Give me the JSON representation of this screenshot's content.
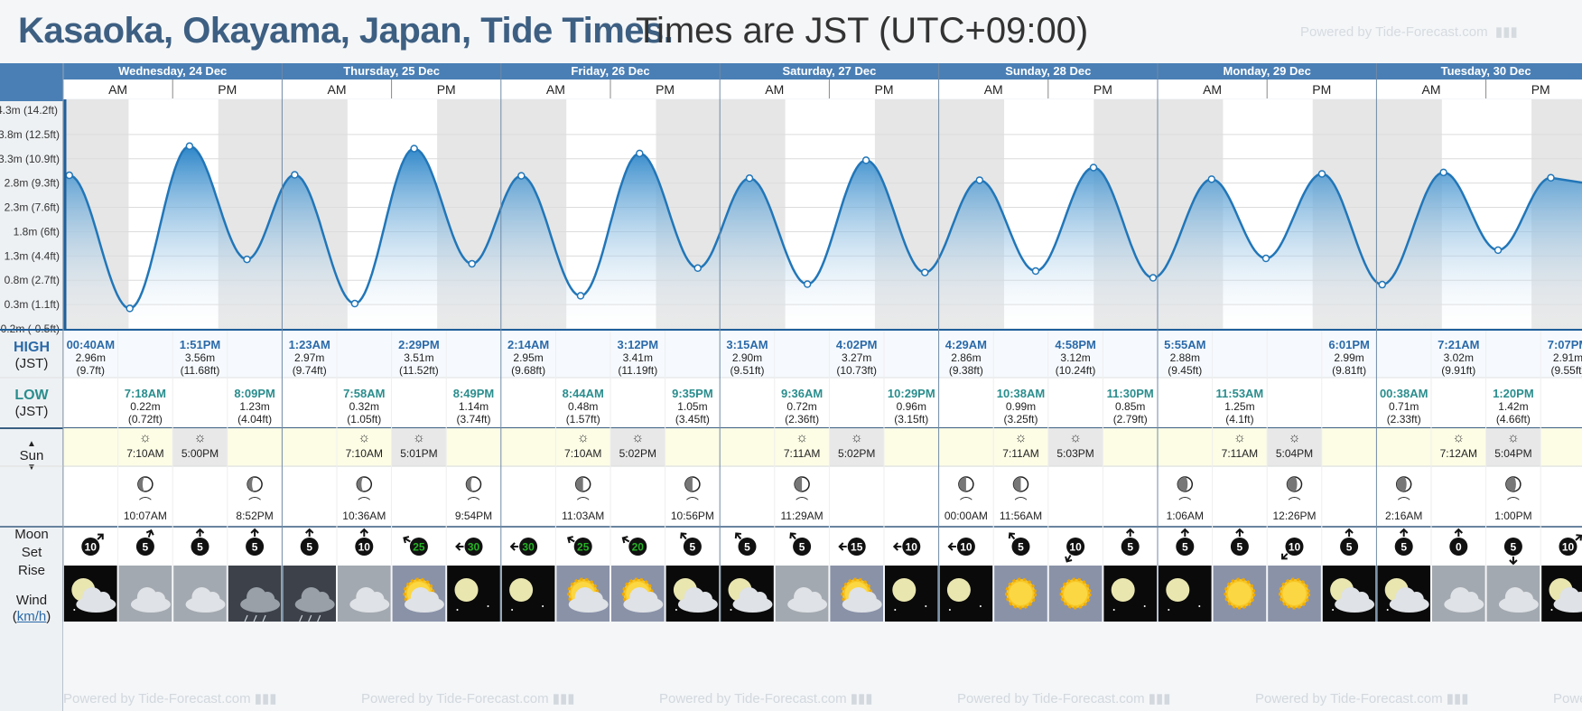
{
  "header": {
    "title": "Kasaoka, Okayama, Japan, Tide Times.",
    "subtitle": "Times are JST (UTC+09:00)",
    "powered_by": "Powered by Tide-Forecast.com"
  },
  "days": [
    {
      "label": "Wednesday, 24 Dec",
      "am": "AM",
      "pm": "PM"
    },
    {
      "label": "Thursday, 25 Dec",
      "am": "AM",
      "pm": "PM"
    },
    {
      "label": "Friday, 26 Dec",
      "am": "AM",
      "pm": "PM"
    },
    {
      "label": "Saturday, 27 Dec",
      "am": "AM",
      "pm": "PM"
    },
    {
      "label": "Sunday, 28 Dec",
      "am": "AM",
      "pm": "PM"
    },
    {
      "label": "Monday, 29 Dec",
      "am": "AM",
      "pm": "PM"
    },
    {
      "label": "Tuesday, 30 Dec",
      "am": "AM",
      "pm": "PM"
    }
  ],
  "y_axis": {
    "labels": [
      "3.8m (12.5ft)",
      "3.3m (10.9ft)",
      "2.8m (9.3ft)",
      "2.3m (7.6ft)",
      "1.8m (6ft)",
      "1.3m (4.4ft)",
      "0.8m (2.7ft)",
      "0.3m (1.1ft)",
      "-0.2m (-0.5ft)"
    ],
    "top_partial": "4.3m (14.2ft)"
  },
  "row_labels": {
    "high": "HIGH",
    "high_tz": "(JST)",
    "low": "LOW",
    "low_tz": "(JST)",
    "sun": "Sun",
    "moon": "Moon",
    "moon_set": "Set",
    "moon_rise": "Rise",
    "wind": "Wind",
    "wind_unit": "km/h"
  },
  "chart_data": {
    "type": "area",
    "title": "",
    "ylabel": "",
    "ylim": [
      -0.2,
      4.3
    ],
    "x_unit": "hours from Wed 24 Dec 00:00 JST",
    "series": [
      {
        "points": [
          {
            "t": "00:40AM",
            "h": 2.96,
            "type": "high",
            "x": 0.67
          },
          {
            "t": "7:18AM",
            "h": 0.22,
            "type": "low",
            "x": 7.3
          },
          {
            "t": "1:51PM",
            "h": 3.56,
            "type": "high",
            "x": 13.85
          },
          {
            "t": "8:09PM",
            "h": 1.23,
            "type": "low",
            "x": 20.15
          },
          {
            "t": "1:23AM",
            "h": 2.97,
            "type": "high",
            "x": 25.38
          },
          {
            "t": "7:58AM",
            "h": 0.32,
            "type": "low",
            "x": 31.97
          },
          {
            "t": "2:29PM",
            "h": 3.51,
            "type": "high",
            "x": 38.48
          },
          {
            "t": "8:49PM",
            "h": 1.14,
            "type": "low",
            "x": 44.82
          },
          {
            "t": "2:14AM",
            "h": 2.95,
            "type": "high",
            "x": 50.23
          },
          {
            "t": "8:44AM",
            "h": 0.48,
            "type": "low",
            "x": 56.73
          },
          {
            "t": "3:12PM",
            "h": 3.41,
            "type": "high",
            "x": 63.2
          },
          {
            "t": "9:35PM",
            "h": 1.05,
            "type": "low",
            "x": 69.58
          },
          {
            "t": "3:15AM",
            "h": 2.9,
            "type": "high",
            "x": 75.25
          },
          {
            "t": "9:36AM",
            "h": 0.72,
            "type": "low",
            "x": 81.6
          },
          {
            "t": "4:02PM",
            "h": 3.27,
            "type": "high",
            "x": 88.03
          },
          {
            "t": "10:29PM",
            "h": 0.96,
            "type": "low",
            "x": 94.48
          },
          {
            "t": "4:29AM",
            "h": 2.86,
            "type": "high",
            "x": 100.48
          },
          {
            "t": "10:38AM",
            "h": 0.99,
            "type": "low",
            "x": 106.63
          },
          {
            "t": "4:58PM",
            "h": 3.12,
            "type": "high",
            "x": 112.97
          },
          {
            "t": "11:30PM",
            "h": 0.85,
            "type": "low",
            "x": 119.5
          },
          {
            "t": "5:55AM",
            "h": 2.88,
            "type": "high",
            "x": 125.92
          },
          {
            "t": "11:53AM",
            "h": 1.25,
            "type": "low",
            "x": 131.88
          },
          {
            "t": "6:01PM",
            "h": 2.99,
            "type": "high",
            "x": 138.02
          },
          {
            "t": "00:38AM",
            "h": 0.71,
            "type": "low",
            "x": 144.63
          },
          {
            "t": "7:21AM",
            "h": 3.02,
            "type": "high",
            "x": 151.35
          },
          {
            "t": "1:20PM",
            "h": 1.42,
            "type": "low",
            "x": 157.33
          },
          {
            "t": "7:07PM",
            "h": 2.91,
            "type": "high",
            "x": 163.12
          }
        ]
      }
    ],
    "tides": [
      {
        "type": "high",
        "time": "00:40AM",
        "m": "2.96m",
        "ft": "(9.7ft)"
      },
      {
        "type": "low",
        "time": "7:18AM",
        "m": "0.22m",
        "ft": "(0.72ft)"
      },
      {
        "type": "high",
        "time": "1:51PM",
        "m": "3.56m",
        "ft": "(11.68ft)"
      },
      {
        "type": "low",
        "time": "8:09PM",
        "m": "1.23m",
        "ft": "(4.04ft)"
      },
      {
        "type": "high",
        "time": "1:23AM",
        "m": "2.97m",
        "ft": "(9.74ft)"
      },
      {
        "type": "low",
        "time": "7:58AM",
        "m": "0.32m",
        "ft": "(1.05ft)"
      },
      {
        "type": "high",
        "time": "2:29PM",
        "m": "3.51m",
        "ft": "(11.52ft)"
      },
      {
        "type": "low",
        "time": "8:49PM",
        "m": "1.14m",
        "ft": "(3.74ft)"
      },
      {
        "type": "high",
        "time": "2:14AM",
        "m": "2.95m",
        "ft": "(9.68ft)"
      },
      {
        "type": "low",
        "time": "8:44AM",
        "m": "0.48m",
        "ft": "(1.57ft)"
      },
      {
        "type": "high",
        "time": "3:12PM",
        "m": "3.41m",
        "ft": "(11.19ft)"
      },
      {
        "type": "low",
        "time": "9:35PM",
        "m": "1.05m",
        "ft": "(3.45ft)"
      },
      {
        "type": "high",
        "time": "3:15AM",
        "m": "2.90m",
        "ft": "(9.51ft)"
      },
      {
        "type": "low",
        "time": "9:36AM",
        "m": "0.72m",
        "ft": "(2.36ft)"
      },
      {
        "type": "high",
        "time": "4:02PM",
        "m": "3.27m",
        "ft": "(10.73ft)"
      },
      {
        "type": "low",
        "time": "10:29PM",
        "m": "0.96m",
        "ft": "(3.15ft)"
      },
      {
        "type": "high",
        "time": "4:29AM",
        "m": "2.86m",
        "ft": "(9.38ft)"
      },
      {
        "type": "low",
        "time": "10:38AM",
        "m": "0.99m",
        "ft": "(3.25ft)"
      },
      {
        "type": "high",
        "time": "4:58PM",
        "m": "3.12m",
        "ft": "(10.24ft)"
      },
      {
        "type": "low",
        "time": "11:30PM",
        "m": "0.85m",
        "ft": "(2.79ft)"
      },
      {
        "type": "high",
        "time": "5:55AM",
        "m": "2.88m",
        "ft": "(9.45ft)"
      },
      {
        "type": "low",
        "time": "11:53AM",
        "m": "1.25m",
        "ft": "(4.1ft)"
      },
      {
        "type": "high",
        "time": "6:01PM",
        "m": "2.99m",
        "ft": "(9.81ft)"
      },
      {
        "type": "low",
        "time": "00:38AM",
        "m": "0.71m",
        "ft": "(2.33ft)"
      },
      {
        "type": "high",
        "time": "7:21AM",
        "m": "3.02m",
        "ft": "(9.91ft)"
      },
      {
        "type": "low",
        "time": "1:20PM",
        "m": "1.42m",
        "ft": "(4.66ft)"
      },
      {
        "type": "high",
        "time": "7:07PM",
        "m": "2.91m",
        "ft": "(9.55ft)"
      }
    ]
  },
  "sun": [
    {
      "rise": "7:10AM",
      "set": "5:00PM"
    },
    {
      "rise": "7:10AM",
      "set": "5:01PM"
    },
    {
      "rise": "7:10AM",
      "set": "5:02PM"
    },
    {
      "rise": "7:11AM",
      "set": "5:02PM"
    },
    {
      "rise": "7:11AM",
      "set": "5:03PM"
    },
    {
      "rise": "7:11AM",
      "set": "5:04PM"
    },
    {
      "rise": "7:12AM",
      "set": "5:04PM"
    }
  ],
  "moon": [
    {
      "slot": 1,
      "kind": "set",
      "time": "10:07AM",
      "phase": "waxing-crescent"
    },
    {
      "slot": 3,
      "kind": "rise",
      "time": "8:52PM",
      "phase": "waxing-crescent"
    },
    {
      "slot": 5,
      "kind": "set",
      "time": "10:36AM",
      "phase": "waxing-crescent"
    },
    {
      "slot": 7,
      "kind": "rise",
      "time": "9:54PM",
      "phase": "waxing-crescent"
    },
    {
      "slot": 9,
      "kind": "set",
      "time": "11:03AM",
      "phase": "first-quarter"
    },
    {
      "slot": 11,
      "kind": "rise",
      "time": "10:56PM",
      "phase": "first-quarter"
    },
    {
      "slot": 13,
      "kind": "set",
      "time": "11:29AM",
      "phase": "first-quarter"
    },
    {
      "slot": 16,
      "kind": "rise",
      "time": "00:00AM",
      "phase": "first-quarter"
    },
    {
      "slot": 17,
      "kind": "set",
      "time": "11:56AM",
      "phase": "first-quarter"
    },
    {
      "slot": 20,
      "kind": "rise",
      "time": "1:06AM",
      "phase": "waxing-gibbous"
    },
    {
      "slot": 22,
      "kind": "set",
      "time": "12:26PM",
      "phase": "waxing-gibbous"
    },
    {
      "slot": 24,
      "kind": "rise",
      "time": "2:16AM",
      "phase": "waxing-gibbous"
    },
    {
      "slot": 26,
      "kind": "set",
      "time": "1:00PM",
      "phase": "waxing-gibbous"
    }
  ],
  "wind": [
    {
      "speed": "10",
      "dir": 225,
      "strong": false
    },
    {
      "speed": "5",
      "dir": 200,
      "strong": false
    },
    {
      "speed": "5",
      "dir": 180,
      "strong": false
    },
    {
      "speed": "5",
      "dir": 180,
      "strong": false
    },
    {
      "speed": "5",
      "dir": 180,
      "strong": false
    },
    {
      "speed": "10",
      "dir": 180,
      "strong": false
    },
    {
      "speed": "25",
      "dir": 120,
      "strong": true
    },
    {
      "speed": "30",
      "dir": 90,
      "strong": true
    },
    {
      "speed": "30",
      "dir": 90,
      "strong": true
    },
    {
      "speed": "25",
      "dir": 120,
      "strong": true
    },
    {
      "speed": "20",
      "dir": 120,
      "strong": true
    },
    {
      "speed": "5",
      "dir": 140,
      "strong": false
    },
    {
      "speed": "5",
      "dir": 140,
      "strong": false
    },
    {
      "speed": "5",
      "dir": 140,
      "strong": false
    },
    {
      "speed": "15",
      "dir": 90,
      "strong": false
    },
    {
      "speed": "10",
      "dir": 90,
      "strong": false
    },
    {
      "speed": "10",
      "dir": 90,
      "strong": false
    },
    {
      "speed": "5",
      "dir": 140,
      "strong": false
    },
    {
      "speed": "10",
      "dir": 30,
      "strong": false
    },
    {
      "speed": "5",
      "dir": 180,
      "strong": false
    },
    {
      "speed": "5",
      "dir": 180,
      "strong": false
    },
    {
      "speed": "5",
      "dir": 180,
      "strong": false
    },
    {
      "speed": "10",
      "dir": 45,
      "strong": false
    },
    {
      "speed": "5",
      "dir": 180,
      "strong": false
    },
    {
      "speed": "5",
      "dir": 180,
      "strong": false
    },
    {
      "speed": "0",
      "dir": 180,
      "strong": false
    },
    {
      "speed": "5",
      "dir": 0,
      "strong": false
    },
    {
      "speed": "10",
      "dir": 230,
      "strong": false
    }
  ],
  "weather": [
    "night-cloudy",
    "cloudy",
    "cloudy",
    "rain",
    "rain",
    "cloudy",
    "partly-sunny",
    "clear-night",
    "clear-night",
    "partly-sunny",
    "partly-sunny",
    "night-cloudy",
    "night-cloudy",
    "cloudy",
    "partly-sunny",
    "clear-night",
    "clear-night",
    "sunny",
    "sunny",
    "clear-night",
    "clear-night",
    "sunny",
    "sunny",
    "night-cloudy",
    "night-cloudy",
    "cloudy",
    "cloudy",
    "night-cloudy"
  ],
  "colors": {
    "header_blue": "#4a7fb5",
    "tide_fill_dark": "#2d86c9",
    "tide_stroke": "#2176b8",
    "high_text": "#2b6aa8",
    "low_text": "#2a8d8d",
    "night_band": "#e6e6e6",
    "sun_row": "#fdfde6",
    "wind_strong": "#24b324"
  }
}
